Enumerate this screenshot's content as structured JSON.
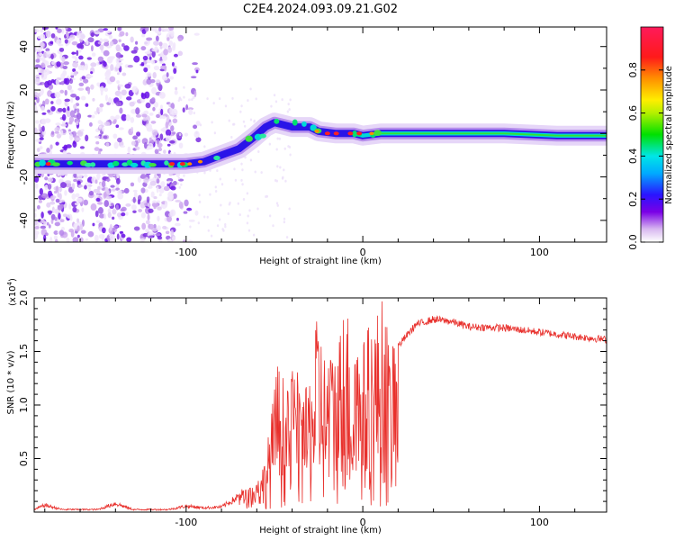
{
  "figure": {
    "title": "C2E4.2024.093.09.21.G02"
  },
  "chart_data": [
    {
      "type": "heatmap",
      "xlabel": "Height of straight line (km)",
      "ylabel": "Frequency (Hz)",
      "xlim": [
        -186,
        138
      ],
      "ylim": [
        -50,
        49
      ],
      "xticks": [
        -100,
        0,
        100
      ],
      "yticks": [
        40,
        20,
        0,
        -20,
        -40
      ],
      "colorbar": {
        "label": "Normalized spectral amplitude",
        "range": [
          0,
          1
        ],
        "ticks": [
          "0.0",
          "0.2",
          "0.4",
          "0.6",
          "0.8"
        ]
      },
      "ridge": [
        {
          "x": -186,
          "y": -14
        },
        {
          "x": -150,
          "y": -14
        },
        {
          "x": -120,
          "y": -14
        },
        {
          "x": -100,
          "y": -14
        },
        {
          "x": -90,
          "y": -13
        },
        {
          "x": -80,
          "y": -10
        },
        {
          "x": -70,
          "y": -7
        },
        {
          "x": -62,
          "y": -2
        },
        {
          "x": -55,
          "y": 3
        },
        {
          "x": -50,
          "y": 5
        },
        {
          "x": -45,
          "y": 4
        },
        {
          "x": -40,
          "y": 3
        },
        {
          "x": -35,
          "y": 3
        },
        {
          "x": -30,
          "y": 3
        },
        {
          "x": -25,
          "y": 1
        },
        {
          "x": -15,
          "y": 0
        },
        {
          "x": -5,
          "y": 0
        },
        {
          "x": 0,
          "y": -1
        },
        {
          "x": 10,
          "y": 0
        },
        {
          "x": 40,
          "y": 0
        },
        {
          "x": 80,
          "y": 0
        },
        {
          "x": 110,
          "y": -1
        },
        {
          "x": 138,
          "y": -1
        }
      ]
    },
    {
      "type": "line",
      "xlabel": "Height of straight line (km)",
      "ylabel": "SNR (10 * v/v)",
      "yscale_label": "(x10",
      "yscale_exponent": "4",
      "xlim": [
        -186,
        138
      ],
      "ylim": [
        0,
        2.0
      ],
      "xticks": [
        -100,
        0,
        100
      ],
      "yticks": [
        "0.5",
        "1.0",
        "1.5",
        "2.0"
      ],
      "color": "#e8302c",
      "envelope": [
        {
          "x": -186,
          "y": 0.03
        },
        {
          "x": -180,
          "y": 0.08
        },
        {
          "x": -170,
          "y": 0.03
        },
        {
          "x": -150,
          "y": 0.03
        },
        {
          "x": -140,
          "y": 0.1
        },
        {
          "x": -130,
          "y": 0.03
        },
        {
          "x": -110,
          "y": 0.03
        },
        {
          "x": -100,
          "y": 0.07
        },
        {
          "x": -90,
          "y": 0.05
        },
        {
          "x": -80,
          "y": 0.06
        },
        {
          "x": -70,
          "y": 0.18
        },
        {
          "x": -60,
          "y": 0.25
        },
        {
          "x": -55,
          "y": 0.5
        },
        {
          "x": -48,
          "y": 1.4
        },
        {
          "x": -42,
          "y": 1.1
        },
        {
          "x": -38,
          "y": 1.5
        },
        {
          "x": -35,
          "y": 0.9
        },
        {
          "x": -30,
          "y": 1.3
        },
        {
          "x": -25,
          "y": 1.9
        },
        {
          "x": -20,
          "y": 1.3
        },
        {
          "x": -15,
          "y": 1.65
        },
        {
          "x": -8,
          "y": 1.9
        },
        {
          "x": -5,
          "y": 1.35
        },
        {
          "x": 5,
          "y": 1.8
        },
        {
          "x": 12,
          "y": 2.0
        },
        {
          "x": 15,
          "y": 1.5
        },
        {
          "x": 20,
          "y": 1.55
        },
        {
          "x": 25,
          "y": 1.65
        },
        {
          "x": 30,
          "y": 1.75
        },
        {
          "x": 40,
          "y": 1.8
        },
        {
          "x": 50,
          "y": 1.78
        },
        {
          "x": 60,
          "y": 1.73
        },
        {
          "x": 80,
          "y": 1.72
        },
        {
          "x": 100,
          "y": 1.68
        },
        {
          "x": 120,
          "y": 1.64
        },
        {
          "x": 138,
          "y": 1.61
        }
      ]
    }
  ]
}
